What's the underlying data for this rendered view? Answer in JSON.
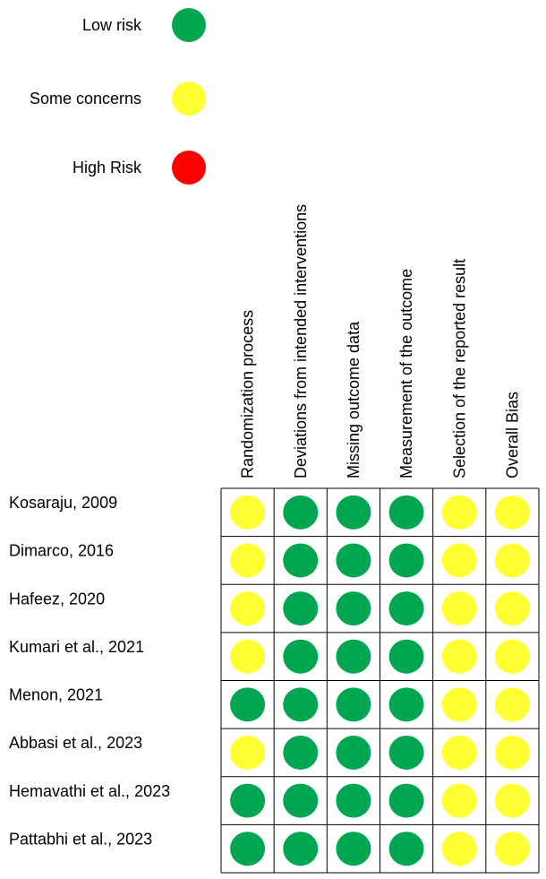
{
  "chart_data": {
    "type": "table",
    "legend": {
      "placement": "top-left",
      "items": [
        {
          "level": "low",
          "label": "Low risk",
          "color": "#00A650"
        },
        {
          "level": "some",
          "label": "Some concerns",
          "color": "#FFFF33"
        },
        {
          "level": "high",
          "label": "High Risk",
          "color": "#FF0000"
        }
      ]
    },
    "domains": [
      "Randomization process",
      "Deviations from intended interventions",
      "Missing outcome data",
      "Measurement of the outcome",
      "Selection of the reported result",
      "Overall Bias"
    ],
    "studies": [
      {
        "label": "Kosaraju, 2009",
        "ratings": [
          "some",
          "low",
          "low",
          "low",
          "some",
          "some"
        ]
      },
      {
        "label": "Dimarco, 2016",
        "ratings": [
          "some",
          "low",
          "low",
          "low",
          "some",
          "some"
        ]
      },
      {
        "label": "Hafeez, 2020",
        "ratings": [
          "some",
          "low",
          "low",
          "low",
          "some",
          "some"
        ]
      },
      {
        "label": "Kumari et al., 2021",
        "ratings": [
          "some",
          "low",
          "low",
          "low",
          "some",
          "some"
        ]
      },
      {
        "label": "Menon, 2021",
        "ratings": [
          "low",
          "low",
          "low",
          "low",
          "some",
          "some"
        ]
      },
      {
        "label": "Abbasi et al., 2023",
        "ratings": [
          "some",
          "low",
          "low",
          "low",
          "some",
          "some"
        ]
      },
      {
        "label": "Hemavathi et al., 2023",
        "ratings": [
          "low",
          "low",
          "low",
          "low",
          "some",
          "some"
        ]
      },
      {
        "label": "Pattabhi et al., 2023",
        "ratings": [
          "low",
          "low",
          "low",
          "low",
          "some",
          "some"
        ]
      }
    ]
  }
}
